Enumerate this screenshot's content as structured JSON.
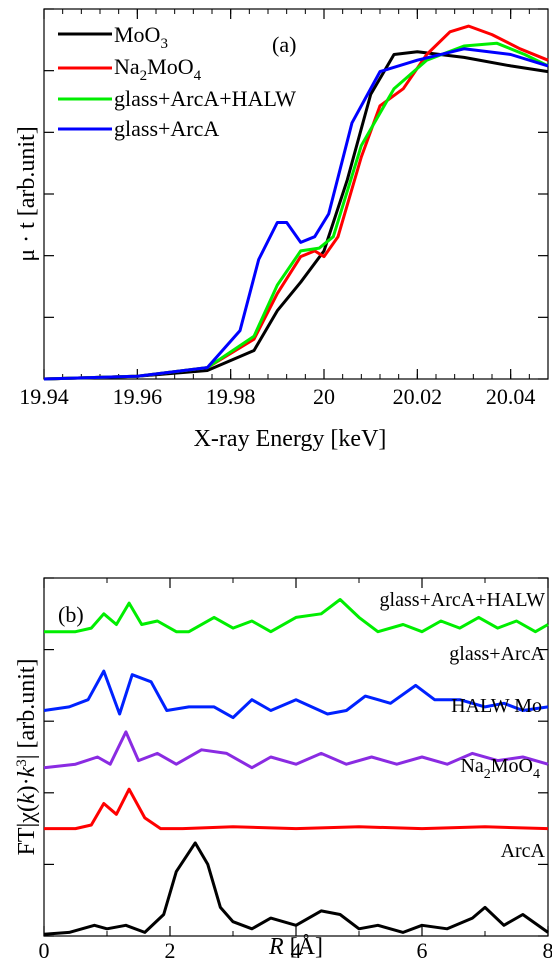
{
  "chart_data": [
    {
      "type": "line",
      "panel_label": "(a)",
      "xlabel": "X-ray Energy [keV]",
      "ylabel": "μ · t [arb.unit]",
      "xlim": [
        19.94,
        20.048
      ],
      "ylim": [
        0,
        1.3
      ],
      "xticks": [
        "19.94",
        "19.96",
        "19.98",
        "20",
        "20.02",
        "20.04"
      ],
      "xtick_values": [
        19.94,
        19.96,
        19.98,
        20.0,
        20.02,
        20.04
      ],
      "legend_position": "top-left",
      "series": [
        {
          "name": "MoO",
          "name_sub": "3",
          "color": "#000000",
          "x": [
            19.94,
            19.96,
            19.975,
            19.985,
            19.99,
            19.995,
            20.0,
            20.005,
            20.01,
            20.015,
            20.02,
            20.03,
            20.04,
            20.048
          ],
          "y": [
            0.0,
            0.01,
            0.03,
            0.1,
            0.24,
            0.34,
            0.45,
            0.7,
            1.0,
            1.14,
            1.15,
            1.13,
            1.1,
            1.08
          ]
        },
        {
          "name": "Na",
          "name_sub": "2",
          "name_mid": "MoO",
          "name_sub2": "4",
          "color": "#ff0000",
          "x": [
            19.94,
            19.96,
            19.975,
            19.985,
            19.99,
            19.995,
            19.998,
            20.0,
            20.003,
            20.008,
            20.012,
            20.017,
            20.022,
            20.027,
            20.031,
            20.036,
            20.042,
            20.048
          ],
          "y": [
            0.0,
            0.01,
            0.04,
            0.14,
            0.3,
            0.43,
            0.45,
            0.43,
            0.5,
            0.78,
            0.96,
            1.02,
            1.14,
            1.22,
            1.24,
            1.21,
            1.16,
            1.12
          ]
        },
        {
          "name": "glass+ArcA+HALW",
          "color": "#00ee00",
          "x": [
            19.94,
            19.96,
            19.975,
            19.985,
            19.99,
            19.995,
            19.999,
            20.002,
            20.008,
            20.015,
            20.022,
            20.03,
            20.037,
            20.043,
            20.048
          ],
          "y": [
            0.0,
            0.01,
            0.04,
            0.15,
            0.33,
            0.45,
            0.46,
            0.5,
            0.82,
            1.02,
            1.12,
            1.17,
            1.18,
            1.14,
            1.1
          ]
        },
        {
          "name": "glass+ArcA",
          "color": "#0000ff",
          "x": [
            19.94,
            19.96,
            19.975,
            19.982,
            19.986,
            19.99,
            19.992,
            19.995,
            19.998,
            20.001,
            20.006,
            20.012,
            20.02,
            20.03,
            20.04,
            20.048
          ],
          "y": [
            0.0,
            0.01,
            0.04,
            0.17,
            0.42,
            0.55,
            0.55,
            0.48,
            0.5,
            0.58,
            0.9,
            1.08,
            1.12,
            1.16,
            1.14,
            1.1
          ]
        }
      ]
    },
    {
      "type": "line",
      "panel_label": "(b)",
      "xlabel_italic": "R",
      "xlabel_rest": "[Å]",
      "ylabel_pre": "FT|χ(",
      "ylabel_k": "k",
      "ylabel_mid": ")·",
      "ylabel_k2": "k",
      "ylabel_sup": "3",
      "ylabel_post": "| [arb.unit]",
      "xlim": [
        0,
        8
      ],
      "ylim": [
        0,
        10
      ],
      "xticks": [
        "0",
        "2",
        "4",
        "6",
        "8"
      ],
      "xtick_values": [
        0,
        2,
        4,
        6,
        8
      ],
      "series": [
        {
          "name": "glass+ArcA+HALW",
          "color": "#00ee00",
          "x": [
            0,
            0.5,
            0.75,
            0.95,
            1.15,
            1.35,
            1.55,
            1.8,
            2.1,
            2.3,
            2.7,
            3.0,
            3.3,
            3.6,
            4.0,
            4.4,
            4.7,
            5.0,
            5.3,
            5.7,
            6.0,
            6.3,
            6.6,
            6.9,
            7.2,
            7.5,
            7.8,
            8.0
          ],
          "y": [
            8.5,
            8.5,
            8.6,
            9.0,
            8.7,
            9.3,
            8.7,
            8.8,
            8.5,
            8.5,
            8.9,
            8.6,
            8.8,
            8.5,
            8.9,
            9.0,
            9.4,
            8.9,
            8.5,
            8.7,
            8.5,
            8.8,
            8.6,
            8.9,
            8.6,
            8.8,
            8.5,
            8.7
          ]
        },
        {
          "name": "glass+ArcA",
          "color": "#0022ff",
          "x": [
            0,
            0.4,
            0.7,
            0.95,
            1.2,
            1.4,
            1.7,
            1.95,
            2.3,
            2.7,
            3.0,
            3.3,
            3.6,
            4.0,
            4.5,
            4.8,
            5.1,
            5.5,
            5.9,
            6.2,
            6.6,
            7.0,
            7.3,
            7.6,
            8.0
          ],
          "y": [
            6.3,
            6.4,
            6.6,
            7.4,
            6.2,
            7.3,
            7.1,
            6.3,
            6.4,
            6.4,
            6.1,
            6.6,
            6.3,
            6.6,
            6.2,
            6.3,
            6.7,
            6.5,
            7.0,
            6.6,
            6.6,
            6.4,
            6.5,
            6.3,
            6.4
          ]
        },
        {
          "name": "HALW Mo",
          "color": "#8a2be2",
          "x": [
            0,
            0.5,
            0.85,
            1.05,
            1.3,
            1.5,
            1.8,
            2.1,
            2.5,
            2.9,
            3.3,
            3.6,
            4.0,
            4.4,
            4.8,
            5.2,
            5.6,
            6.0,
            6.4,
            6.8,
            7.2,
            7.6,
            8.0
          ],
          "y": [
            4.7,
            4.8,
            5.0,
            4.8,
            5.7,
            4.9,
            5.1,
            4.8,
            5.2,
            5.1,
            4.7,
            5.0,
            4.8,
            5.1,
            4.8,
            5.0,
            4.8,
            5.0,
            4.8,
            5.1,
            4.9,
            5.0,
            4.8
          ]
        },
        {
          "name": "Na",
          "name_sub": "2",
          "name_mid": "MoO",
          "name_sub2": "4",
          "color": "#ff0000",
          "x": [
            0,
            0.5,
            0.75,
            0.95,
            1.15,
            1.35,
            1.6,
            1.85,
            2.2,
            3.0,
            4.0,
            5.0,
            6.0,
            7.0,
            8.0
          ],
          "y": [
            3.0,
            3.0,
            3.1,
            3.7,
            3.4,
            4.1,
            3.3,
            3.0,
            3.0,
            3.05,
            3.0,
            3.05,
            3.0,
            3.05,
            3.0
          ]
        },
        {
          "name": "ArcA",
          "color": "#000000",
          "x": [
            0,
            0.4,
            0.8,
            1.0,
            1.3,
            1.6,
            1.9,
            2.1,
            2.4,
            2.6,
            2.8,
            3.0,
            3.3,
            3.6,
            4.0,
            4.4,
            4.7,
            5.0,
            5.3,
            5.7,
            6.0,
            6.4,
            6.8,
            7.0,
            7.3,
            7.6,
            8.0
          ],
          "y": [
            0.05,
            0.1,
            0.3,
            0.2,
            0.3,
            0.1,
            0.6,
            1.8,
            2.6,
            2.0,
            0.8,
            0.4,
            0.2,
            0.5,
            0.3,
            0.7,
            0.6,
            0.2,
            0.3,
            0.1,
            0.3,
            0.2,
            0.5,
            0.8,
            0.3,
            0.6,
            0.1
          ]
        }
      ]
    }
  ]
}
